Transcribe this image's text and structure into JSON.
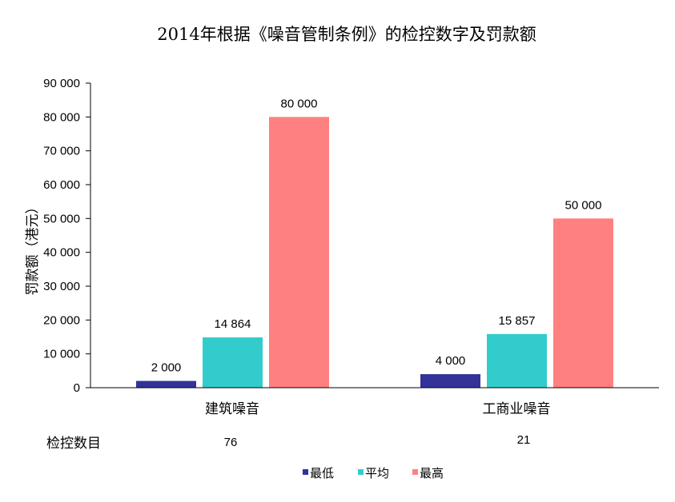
{
  "chart_data": {
    "type": "bar",
    "title": "2014年根据《噪音管制条例》的检控数字及罚款额",
    "ylabel": "罚款额（港元）",
    "xlabel": "",
    "ylim": [
      0,
      90000
    ],
    "yticks": [
      0,
      10000,
      20000,
      30000,
      40000,
      50000,
      60000,
      70000,
      80000,
      90000
    ],
    "ytick_labels": [
      "0",
      "10 000",
      "20 000",
      "30 000",
      "40 000",
      "50 000",
      "60 000",
      "70 000",
      "80 000",
      "90 000"
    ],
    "categories": [
      "建筑噪音",
      "工商业噪音"
    ],
    "series": [
      {
        "name": "最低",
        "values": [
          2000,
          4000
        ],
        "labels": [
          "2 000",
          "4 000"
        ],
        "color": "#333399"
      },
      {
        "name": "平均",
        "values": [
          14864,
          15857
        ],
        "labels": [
          "14 864",
          "15 857"
        ],
        "color": "#33CCCC"
      },
      {
        "name": "最高",
        "values": [
          80000,
          50000
        ],
        "labels": [
          "80 000",
          "50 000"
        ],
        "color": "#FF8080"
      }
    ],
    "table_row": {
      "label": "检控数目",
      "values": [
        "76",
        "21"
      ]
    },
    "legend_placement": "bottom",
    "grid": false
  }
}
